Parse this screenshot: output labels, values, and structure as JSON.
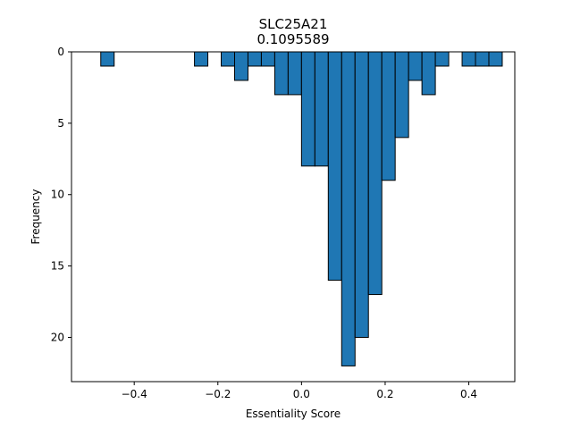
{
  "chart_data": {
    "type": "bar",
    "title": "SLC25A21",
    "subtitle": "0.1095589",
    "xlabel": "Essentiality Score",
    "ylabel": "Frequency",
    "bin_width": 0.032,
    "bins": [
      {
        "x": -0.48,
        "count": 1
      },
      {
        "x": -0.256,
        "count": 1
      },
      {
        "x": -0.192,
        "count": 1
      },
      {
        "x": -0.16,
        "count": 2
      },
      {
        "x": -0.128,
        "count": 1
      },
      {
        "x": -0.096,
        "count": 1
      },
      {
        "x": -0.064,
        "count": 3
      },
      {
        "x": -0.032,
        "count": 3
      },
      {
        "x": 0.0,
        "count": 8
      },
      {
        "x": 0.032,
        "count": 8
      },
      {
        "x": 0.064,
        "count": 16
      },
      {
        "x": 0.096,
        "count": 22
      },
      {
        "x": 0.128,
        "count": 20
      },
      {
        "x": 0.16,
        "count": 17
      },
      {
        "x": 0.192,
        "count": 9
      },
      {
        "x": 0.224,
        "count": 6
      },
      {
        "x": 0.256,
        "count": 2
      },
      {
        "x": 0.288,
        "count": 3
      },
      {
        "x": 0.32,
        "count": 1
      },
      {
        "x": 0.384,
        "count": 1
      },
      {
        "x": 0.416,
        "count": 1
      },
      {
        "x": 0.448,
        "count": 1
      }
    ],
    "xlim": [
      -0.55,
      0.51
    ],
    "ylim": [
      0,
      23.1
    ],
    "y_inverted": true,
    "x_ticks": [
      -0.4,
      -0.2,
      0.0,
      0.2,
      0.4
    ],
    "x_tick_labels": [
      "−0.4",
      "−0.2",
      "0.0",
      "0.2",
      "0.4"
    ],
    "y_ticks": [
      0,
      5,
      10,
      15,
      20
    ],
    "y_tick_labels": [
      "0",
      "5",
      "10",
      "15",
      "20"
    ],
    "bar_color": "#1f77b4",
    "edge_color": "#000000",
    "grid": false,
    "legend": "none"
  }
}
